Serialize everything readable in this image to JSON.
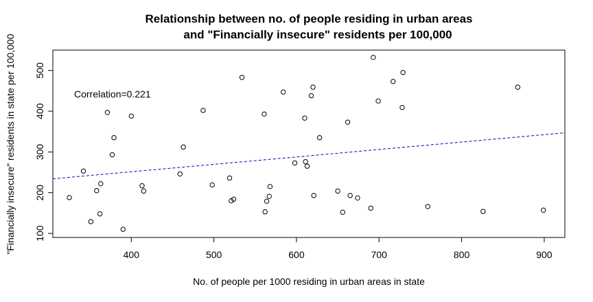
{
  "chart_data": {
    "type": "scatter",
    "title": "Relationship between no. of people residing in urban areas",
    "subtitle": "and \"Financially insecure\" residents per 100,000",
    "xlabel": "No. of people per 1000 residing in urban areas in state",
    "ylabel": "\"Financially insecure\" residents in state per 100,000",
    "xlim": [
      305,
      925
    ],
    "ylim": [
      90,
      550
    ],
    "xticks": [
      400,
      500,
      600,
      700,
      800,
      900
    ],
    "yticks": [
      100,
      200,
      300,
      400,
      500
    ],
    "grid": false,
    "annotation": "Correlation=0.221",
    "trendline": {
      "style": "dashed",
      "color": "#0000cc",
      "points": [
        [
          305,
          234
        ],
        [
          925,
          347
        ]
      ]
    },
    "points": [
      [
        325,
        188
      ],
      [
        342,
        253
      ],
      [
        351,
        129
      ],
      [
        358,
        205
      ],
      [
        362,
        148
      ],
      [
        363,
        222
      ],
      [
        371,
        397
      ],
      [
        377,
        293
      ],
      [
        379,
        335
      ],
      [
        390,
        110
      ],
      [
        400,
        388
      ],
      [
        413,
        217
      ],
      [
        415,
        204
      ],
      [
        459,
        246
      ],
      [
        463,
        312
      ],
      [
        487,
        402
      ],
      [
        498,
        219
      ],
      [
        519,
        236
      ],
      [
        521,
        180
      ],
      [
        524,
        184
      ],
      [
        534,
        483
      ],
      [
        561,
        393
      ],
      [
        562,
        153
      ],
      [
        564,
        179
      ],
      [
        567,
        191
      ],
      [
        568,
        215
      ],
      [
        584,
        447
      ],
      [
        598,
        273
      ],
      [
        610,
        383
      ],
      [
        611,
        276
      ],
      [
        613,
        265
      ],
      [
        618,
        438
      ],
      [
        620,
        459
      ],
      [
        621,
        193
      ],
      [
        628,
        335
      ],
      [
        650,
        204
      ],
      [
        656,
        152
      ],
      [
        662,
        373
      ],
      [
        665,
        193
      ],
      [
        674,
        187
      ],
      [
        690,
        162
      ],
      [
        693,
        532
      ],
      [
        699,
        425
      ],
      [
        717,
        473
      ],
      [
        728,
        409
      ],
      [
        729,
        495
      ],
      [
        759,
        166
      ],
      [
        826,
        154
      ],
      [
        868,
        459
      ],
      [
        899,
        157
      ]
    ]
  }
}
